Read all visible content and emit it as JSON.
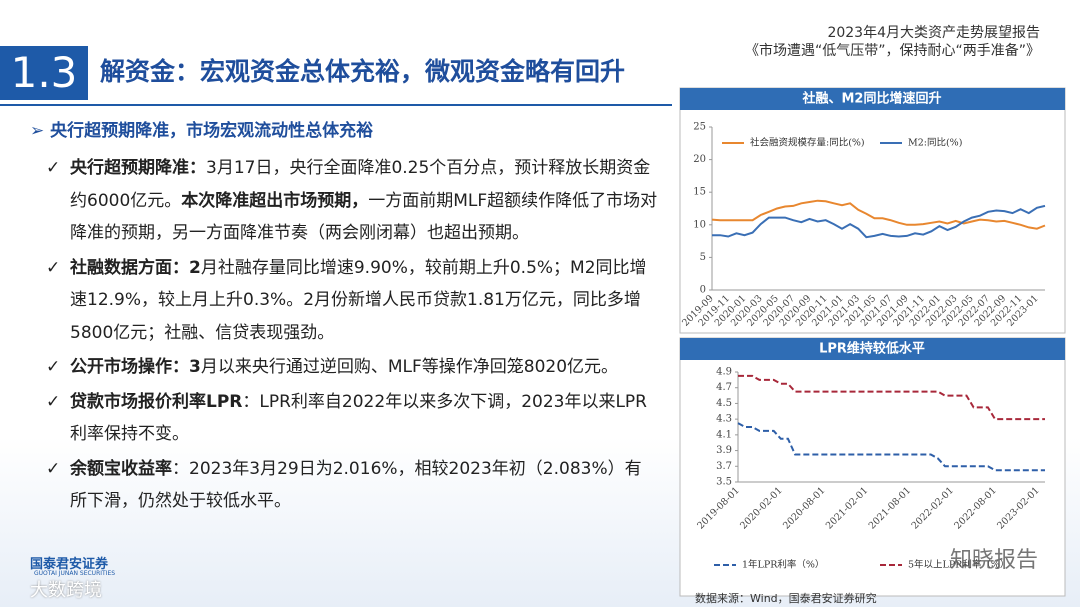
{
  "header": {
    "report": "2023年4月大类资产走势展望报告",
    "subtitle": "《市场遭遇“低气压带”，保持耐心“两手准备”》"
  },
  "section": {
    "number": "1.3",
    "title": "解资金：宏观资金总体充裕，微观资金略有回升"
  },
  "bullet": "央行超预期降准，市场宏观流动性总体充裕",
  "items": [
    {
      "segments": [
        {
          "text": "央行超预期降准：",
          "bold": true
        },
        {
          "text": "3月17日，央行全面降准0.25个百分点，预计释放长期资金约6000亿元。",
          "bold": false
        },
        {
          "text": "本次降准超出市场预期，",
          "bold": true
        },
        {
          "text": "一方面前期MLF超额续作降低了市场对降准的预期，另一方面降准节奏（两会刚闭幕）也超出预期。",
          "bold": false
        }
      ]
    },
    {
      "segments": [
        {
          "text": "社融数据方面：2",
          "bold": true
        },
        {
          "text": "月社融存量同比增速9.90%，较前期上升0.5%；M2同比增速12.9%，较上月上升0.3%。2月份新增人民币贷款1.81万亿元，同比多增5800亿元；社融、信贷表现强劲。",
          "bold": false
        }
      ]
    },
    {
      "segments": [
        {
          "text": "公开市场操作：3",
          "bold": true
        },
        {
          "text": "月以来央行通过逆回购、MLF等操作净回笼8020亿元。",
          "bold": false
        }
      ]
    },
    {
      "segments": [
        {
          "text": "贷款市场报价利率LPR",
          "bold": true
        },
        {
          "text": "：LPR利率自2022年以来多次下调，2023年以来LPR利率保持不变。",
          "bold": false
        }
      ]
    },
    {
      "segments": [
        {
          "text": "余额宝收益率",
          "bold": true
        },
        {
          "text": "：2023年3月29日为2.016%，相较2023年初（2.083%）有所下滑，仍然处于较低水平。",
          "bold": false
        }
      ]
    }
  ],
  "source": "数据来源：Wind，国泰君安证券研究",
  "logo": {
    "cn": "国泰君安证券",
    "en": "GUOTAI JUNAN SECURITIES"
  },
  "watermarks": [
    "大数跨境",
    "知晓报告"
  ],
  "chart_data": [
    {
      "type": "line",
      "title": "社融、M2同比增速回升",
      "legend": "top-left",
      "grid": false,
      "categories": [
        "2019-09",
        null,
        "2019-11",
        null,
        "2020-01",
        null,
        "2020-03",
        null,
        "2020-05",
        null,
        "2020-07",
        null,
        "2020-09",
        null,
        "2020-11",
        null,
        "2021-01",
        null,
        "2021-03",
        null,
        "2021-05",
        null,
        "2021-07",
        null,
        "2021-09",
        null,
        "2021-11",
        null,
        "2022-01",
        null,
        "2022-03",
        null,
        "2022-05",
        null,
        "2022-07",
        null,
        "2022-09",
        null,
        "2022-11",
        null,
        "2023-01",
        null
      ],
      "ylim": [
        0,
        25
      ],
      "yticks": [
        0,
        5,
        10,
        15,
        20,
        25
      ],
      "series": [
        {
          "name": "社会融资规模存量:同比(%)",
          "color": "#e8872f",
          "dashed": false,
          "values": [
            10.8,
            10.7,
            10.7,
            10.7,
            10.7,
            10.7,
            11.5,
            12.0,
            12.5,
            12.8,
            12.9,
            13.3,
            13.5,
            13.7,
            13.6,
            13.3,
            13.0,
            13.3,
            12.3,
            11.7,
            11.0,
            11.0,
            10.7,
            10.3,
            10.0,
            10.0,
            10.1,
            10.3,
            10.5,
            10.2,
            10.6,
            10.2,
            10.5,
            10.8,
            10.7,
            10.5,
            10.6,
            10.3,
            10.0,
            9.6,
            9.4,
            9.9
          ]
        },
        {
          "name": "M2:同比(%)",
          "color": "#3a6fb5",
          "dashed": false,
          "values": [
            8.4,
            8.4,
            8.2,
            8.7,
            8.4,
            8.8,
            10.1,
            11.1,
            11.1,
            11.1,
            10.7,
            10.4,
            10.9,
            10.5,
            10.7,
            10.1,
            9.4,
            10.1,
            9.4,
            8.1,
            8.3,
            8.6,
            8.3,
            8.2,
            8.3,
            8.7,
            8.5,
            9.0,
            9.8,
            9.2,
            9.7,
            10.5,
            11.1,
            11.4,
            12.0,
            12.2,
            12.1,
            11.8,
            12.4,
            11.8,
            12.6,
            12.9
          ]
        }
      ]
    },
    {
      "type": "line",
      "title": "LPR维持较低水平",
      "legend": "bottom",
      "grid": false,
      "categories": [
        "2019-08-01",
        null,
        null,
        null,
        null,
        null,
        "2020-02-01",
        null,
        null,
        null,
        null,
        null,
        "2020-08-01",
        null,
        null,
        null,
        null,
        null,
        "2021-02-01",
        null,
        null,
        null,
        null,
        null,
        "2021-08-01",
        null,
        null,
        null,
        null,
        null,
        "2022-02-01",
        null,
        null,
        null,
        null,
        null,
        "2022-08-01",
        null,
        null,
        null,
        null,
        null,
        "2023-02-01",
        null
      ],
      "ylim": [
        3.5,
        4.9
      ],
      "yticks": [
        3.5,
        3.7,
        3.9,
        4.1,
        4.3,
        4.5,
        4.7,
        4.9
      ],
      "series": [
        {
          "name": "1年LPR利率（%）",
          "color": "#2e5fa8",
          "dashed": true,
          "values": [
            4.25,
            4.2,
            4.2,
            4.15,
            4.15,
            4.15,
            4.05,
            4.05,
            3.85,
            3.85,
            3.85,
            3.85,
            3.85,
            3.85,
            3.85,
            3.85,
            3.85,
            3.85,
            3.85,
            3.85,
            3.85,
            3.85,
            3.85,
            3.85,
            3.85,
            3.85,
            3.85,
            3.85,
            3.8,
            3.7,
            3.7,
            3.7,
            3.7,
            3.7,
            3.7,
            3.7,
            3.65,
            3.65,
            3.65,
            3.65,
            3.65,
            3.65,
            3.65,
            3.65
          ]
        },
        {
          "name": "5年以上LPR利率（%）",
          "color": "#a8283a",
          "dashed": true,
          "values": [
            4.85,
            4.85,
            4.85,
            4.8,
            4.8,
            4.8,
            4.75,
            4.75,
            4.65,
            4.65,
            4.65,
            4.65,
            4.65,
            4.65,
            4.65,
            4.65,
            4.65,
            4.65,
            4.65,
            4.65,
            4.65,
            4.65,
            4.65,
            4.65,
            4.65,
            4.65,
            4.65,
            4.65,
            4.65,
            4.6,
            4.6,
            4.6,
            4.6,
            4.45,
            4.45,
            4.45,
            4.3,
            4.3,
            4.3,
            4.3,
            4.3,
            4.3,
            4.3,
            4.3
          ]
        }
      ]
    }
  ]
}
